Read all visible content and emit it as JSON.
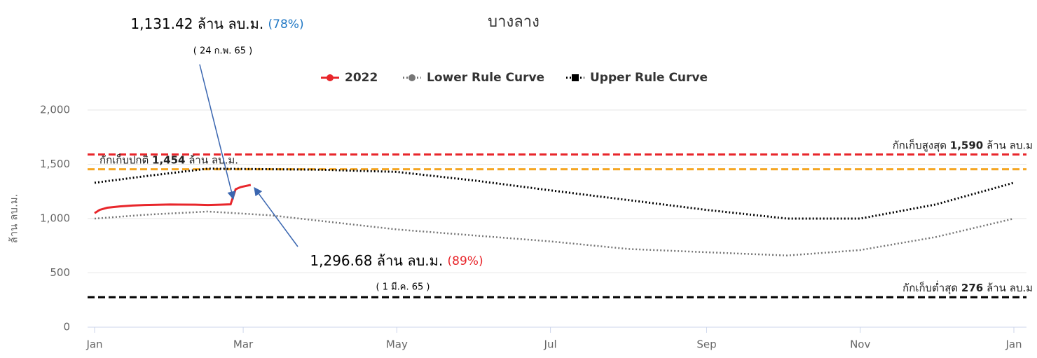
{
  "chart_data": {
    "type": "line",
    "title": "บางลาง",
    "y_label": "ล้าน ลบ.ม.",
    "xlim": [
      0,
      365
    ],
    "xticks": [
      {
        "value": 0,
        "label": "Jan"
      },
      {
        "value": 59,
        "label": "Mar"
      },
      {
        "value": 120,
        "label": "May"
      },
      {
        "value": 181,
        "label": "Jul"
      },
      {
        "value": 243,
        "label": "Sep"
      },
      {
        "value": 304,
        "label": "Nov"
      },
      {
        "value": 365,
        "label": "Jan"
      }
    ],
    "ylim": [
      0,
      2000
    ],
    "yticks": [
      0,
      500,
      {
        "value": 1000,
        "label": "1,000"
      },
      {
        "value": 1500,
        "label": "1,500"
      },
      {
        "value": 2000,
        "label": "2,000"
      }
    ],
    "grid": true,
    "legend": "top",
    "series": [
      {
        "name": "2022",
        "color": "#e8262b",
        "line_style": "solid",
        "marker": "circle",
        "x": [
          0,
          2,
          5,
          10,
          15,
          20,
          30,
          40,
          45,
          50,
          54,
          56,
          58,
          62
        ],
        "values": [
          1050,
          1080,
          1100,
          1112,
          1120,
          1125,
          1130,
          1128,
          1125,
          1128,
          1131.42,
          1270,
          1290,
          1310
        ]
      },
      {
        "name": "Lower Rule Curve",
        "color": "#777777",
        "line_style": "dotted",
        "marker": "circle",
        "x": [
          0,
          20,
          45,
          70,
          120,
          181,
          212,
          243,
          275,
          304,
          334,
          365
        ],
        "values": [
          1000,
          1035,
          1065,
          1030,
          900,
          790,
          720,
          690,
          660,
          710,
          830,
          1000
        ]
      },
      {
        "name": "Upper Rule Curve",
        "color": "#000000",
        "line_style": "dotted",
        "marker": "square",
        "x": [
          0,
          20,
          45,
          90,
          120,
          151,
          181,
          212,
          243,
          275,
          304,
          334,
          365
        ],
        "values": [
          1330,
          1390,
          1460,
          1450,
          1430,
          1350,
          1260,
          1170,
          1080,
          1000,
          1000,
          1130,
          1330
        ]
      }
    ],
    "reference_lines": [
      {
        "value": 1590,
        "color": "#e8262b",
        "side": "right",
        "label": [
          "กักเก็บสูงสุด ",
          "1,590",
          " ล้าน ลบ.ม"
        ]
      },
      {
        "value": 1454,
        "color": "#f5a623",
        "side": "left",
        "label": [
          "กักเก็บปกติ ",
          "1,454",
          " ล้าน ลบ.ม."
        ]
      },
      {
        "value": 276,
        "color": "#000000",
        "side": "right",
        "label": [
          "กักเก็บต่ำสุด ",
          "276",
          " ล้าน ลบ.ม"
        ]
      }
    ],
    "annotations": [
      {
        "text": "1,131.42 ล้าน ลบ.ม.",
        "percent": "(78%)",
        "percent_color": "#1f77c4",
        "date": "( 24 ก.พ. 65 )"
      },
      {
        "text": "1,296.68 ล้าน ลบ.ม.",
        "percent": "(89%)",
        "percent_color": "#e8262b",
        "date": "( 1 มี.ค. 65 )"
      }
    ]
  }
}
